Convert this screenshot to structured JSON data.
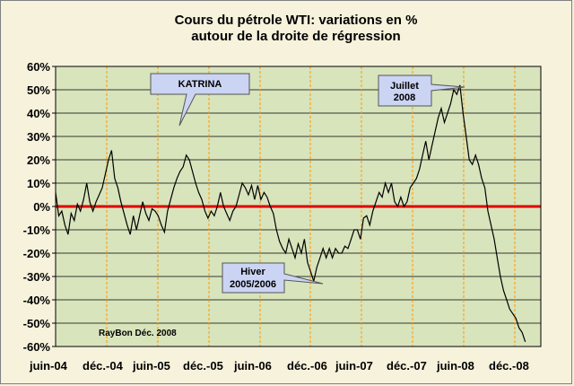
{
  "chart_data": {
    "type": "line",
    "title": [
      "Cours du pétrole WTI: variations en %",
      "autour de la droite de régression"
    ],
    "xlabel": "",
    "ylabel": "",
    "ylim": [
      -60,
      60
    ],
    "yticks": [
      60,
      50,
      40,
      30,
      20,
      10,
      0,
      -10,
      -20,
      -30,
      -40,
      -50,
      -60
    ],
    "ytick_labels": [
      "60%",
      "50%",
      "40%",
      "30%",
      "20%",
      "10%",
      "0%",
      "-10%",
      "-20%",
      "-30%",
      "-40%",
      "-50%",
      "-60%"
    ],
    "xtick_labels": [
      "juin-04",
      "déc.-04",
      "juin-05",
      "déc.-05",
      "juin-06",
      "déc.-06",
      "juin-07",
      "déc.-07",
      "juin-08",
      "déc.-08"
    ],
    "grid": true,
    "zero_line_color": "#e00000",
    "series_color": "#000000",
    "plot_background": "#d8e4bc",
    "vertical_grid_color": "#ff9900",
    "series": [
      {
        "values": [
          [
            0.0,
            6
          ],
          [
            0.1,
            -4
          ],
          [
            0.2,
            -2
          ],
          [
            0.3,
            -8
          ],
          [
            0.4,
            -12
          ],
          [
            0.5,
            -3
          ],
          [
            0.6,
            -6
          ],
          [
            0.7,
            1
          ],
          [
            0.8,
            -2
          ],
          [
            0.9,
            3
          ],
          [
            1.0,
            10
          ],
          [
            1.1,
            2
          ],
          [
            1.2,
            -2
          ],
          [
            1.3,
            2
          ],
          [
            1.4,
            5
          ],
          [
            1.5,
            8
          ],
          [
            1.6,
            14
          ],
          [
            1.7,
            20
          ],
          [
            1.8,
            24
          ],
          [
            1.9,
            12
          ],
          [
            2.0,
            8
          ],
          [
            2.1,
            2
          ],
          [
            2.2,
            -3
          ],
          [
            2.3,
            -8
          ],
          [
            2.4,
            -12
          ],
          [
            2.5,
            -4
          ],
          [
            2.6,
            -10
          ],
          [
            2.7,
            -4
          ],
          [
            2.8,
            2
          ],
          [
            2.9,
            -3
          ],
          [
            3.0,
            -6
          ],
          [
            3.1,
            -1
          ],
          [
            3.2,
            -2
          ],
          [
            3.3,
            -4
          ],
          [
            3.4,
            -8
          ],
          [
            3.5,
            -11
          ],
          [
            3.6,
            -2
          ],
          [
            3.7,
            3
          ],
          [
            3.8,
            8
          ],
          [
            3.9,
            12
          ],
          [
            4.0,
            15
          ],
          [
            4.1,
            17
          ],
          [
            4.2,
            22
          ],
          [
            4.3,
            20
          ],
          [
            4.4,
            15
          ],
          [
            4.5,
            10
          ],
          [
            4.6,
            6
          ],
          [
            4.7,
            3
          ],
          [
            4.8,
            -2
          ],
          [
            4.9,
            -5
          ],
          [
            5.0,
            -2
          ],
          [
            5.1,
            -4
          ],
          [
            5.2,
            0
          ],
          [
            5.3,
            6
          ],
          [
            5.4,
            0
          ],
          [
            5.5,
            -3
          ],
          [
            5.6,
            -6
          ],
          [
            5.7,
            -2
          ],
          [
            5.8,
            0
          ],
          [
            5.9,
            5
          ],
          [
            6.0,
            10
          ],
          [
            6.1,
            8
          ],
          [
            6.2,
            5
          ],
          [
            6.3,
            9
          ],
          [
            6.4,
            3
          ],
          [
            6.5,
            9
          ],
          [
            6.6,
            3
          ],
          [
            6.7,
            6
          ],
          [
            6.8,
            4
          ],
          [
            6.9,
            0
          ],
          [
            7.0,
            -3
          ],
          [
            7.1,
            -10
          ],
          [
            7.2,
            -15
          ],
          [
            7.3,
            -18
          ],
          [
            7.4,
            -20
          ],
          [
            7.5,
            -14
          ],
          [
            7.6,
            -18
          ],
          [
            7.7,
            -22
          ],
          [
            7.8,
            -16
          ],
          [
            7.9,
            -20
          ],
          [
            8.0,
            -14
          ],
          [
            8.1,
            -24
          ],
          [
            8.2,
            -28
          ],
          [
            8.3,
            -32
          ],
          [
            8.4,
            -26
          ],
          [
            8.5,
            -22
          ],
          [
            8.6,
            -18
          ],
          [
            8.7,
            -22
          ],
          [
            8.8,
            -18
          ],
          [
            8.9,
            -22
          ],
          [
            9.0,
            -18
          ],
          [
            9.1,
            -20
          ],
          [
            9.2,
            -20
          ],
          [
            9.3,
            -17
          ],
          [
            9.4,
            -18
          ],
          [
            9.5,
            -14
          ],
          [
            9.6,
            -10
          ],
          [
            9.7,
            -10
          ],
          [
            9.8,
            -14
          ],
          [
            9.9,
            -5
          ],
          [
            10.0,
            -4
          ],
          [
            10.1,
            -8
          ],
          [
            10.2,
            -2
          ],
          [
            10.3,
            2
          ],
          [
            10.4,
            6
          ],
          [
            10.5,
            4
          ],
          [
            10.6,
            10
          ],
          [
            10.7,
            6
          ],
          [
            10.8,
            10
          ],
          [
            10.9,
            2
          ],
          [
            11.0,
            0
          ],
          [
            11.1,
            4
          ],
          [
            11.2,
            0
          ],
          [
            11.3,
            2
          ],
          [
            11.4,
            8
          ],
          [
            11.5,
            10
          ],
          [
            11.6,
            12
          ],
          [
            11.7,
            16
          ],
          [
            11.8,
            22
          ],
          [
            11.9,
            28
          ],
          [
            12.0,
            20
          ],
          [
            12.1,
            26
          ],
          [
            12.2,
            32
          ],
          [
            12.3,
            38
          ],
          [
            12.4,
            42
          ],
          [
            12.5,
            36
          ],
          [
            12.6,
            40
          ],
          [
            12.7,
            44
          ],
          [
            12.8,
            50
          ],
          [
            12.9,
            48
          ],
          [
            13.0,
            52
          ],
          [
            13.1,
            40
          ],
          [
            13.2,
            30
          ],
          [
            13.3,
            20
          ],
          [
            13.4,
            18
          ],
          [
            13.5,
            22
          ],
          [
            13.6,
            18
          ],
          [
            13.7,
            12
          ],
          [
            13.8,
            8
          ],
          [
            13.9,
            -2
          ],
          [
            14.0,
            -8
          ],
          [
            14.1,
            -14
          ],
          [
            14.2,
            -22
          ],
          [
            14.3,
            -30
          ],
          [
            14.4,
            -36
          ],
          [
            14.5,
            -40
          ],
          [
            14.6,
            -44
          ],
          [
            14.7,
            -46
          ],
          [
            14.8,
            -48
          ],
          [
            14.9,
            -52
          ],
          [
            15.0,
            -54
          ],
          [
            15.1,
            -58
          ]
        ]
      }
    ],
    "annotations": [
      {
        "lines": [
          "KATRINA"
        ],
        "id": "katrina"
      },
      {
        "lines": [
          "Juillet",
          "2008"
        ],
        "id": "juillet"
      },
      {
        "lines": [
          "Hiver",
          "2005/2006"
        ],
        "id": "hiver"
      }
    ],
    "credit": "RayBon Déc. 2008"
  }
}
